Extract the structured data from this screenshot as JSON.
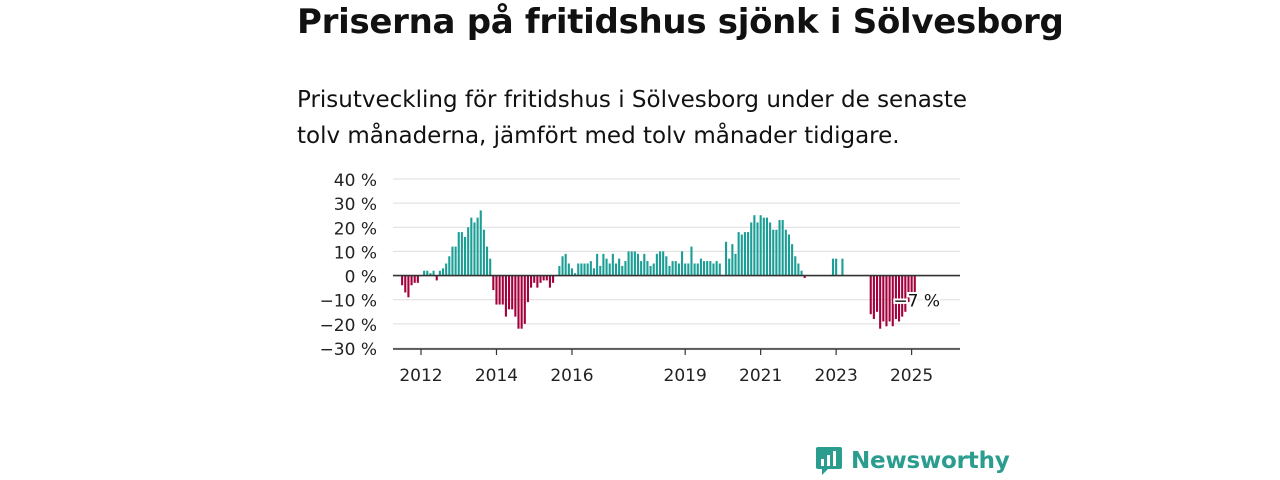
{
  "title": "Priserna på fritidshus sjönk i Sölvesborg",
  "subtitle": "Prisutveckling för fritidshus i Sölvesborg under de senaste tolv månaderna, jämfört med tolv månader tidigare.",
  "brand": {
    "name": "Newsworthy",
    "icon": "newsworthy-logo-icon"
  },
  "colors": {
    "positive": "#1a9e96",
    "negative": "#a3003c",
    "grid": "#dddddd",
    "zero_line": "#333333",
    "brand": "#2a9d8f"
  },
  "chart_data": {
    "type": "bar",
    "title": "",
    "xlabel": "",
    "ylabel": "",
    "ylim": [
      -30,
      40
    ],
    "y_ticks": [
      40,
      30,
      20,
      10,
      0,
      -10,
      -20,
      -30
    ],
    "y_tick_labels": [
      "40 %",
      "30 %",
      "20 %",
      "10 %",
      "0 %",
      "−10 %",
      "−20 %",
      "−30 %"
    ],
    "x_tick_labels": [
      "2012",
      "2014",
      "2016",
      "2019",
      "2021",
      "2023",
      "2025"
    ],
    "x_tick_months": [
      6,
      30,
      54,
      90,
      114,
      138,
      162
    ],
    "grid": true,
    "start": "2011-12",
    "months": 172,
    "series": [
      {
        "values": [
          -4,
          -7,
          -9,
          -4,
          -3,
          -3,
          null,
          2,
          2,
          1,
          2,
          -2,
          2,
          3,
          5,
          8,
          12,
          12,
          18,
          18,
          16,
          20,
          24,
          22,
          24,
          27,
          19,
          12,
          7,
          -6,
          -12,
          -12,
          -12,
          -17,
          -14,
          -14,
          -17,
          -22,
          -22,
          -20,
          -11,
          -5,
          -3,
          -5,
          -3,
          -2,
          -2,
          -5,
          -3,
          null,
          4,
          8,
          9,
          5,
          3,
          1,
          5,
          5,
          5,
          5,
          6,
          3,
          9,
          4,
          9,
          7,
          5,
          9,
          5,
          7,
          4,
          6,
          10,
          10,
          10,
          9,
          6,
          9,
          6,
          4,
          5,
          9,
          10,
          10,
          8,
          4,
          6,
          6,
          5,
          10,
          5,
          5,
          12,
          5,
          5,
          7,
          6,
          6,
          6,
          5,
          6,
          5,
          null,
          14,
          7,
          13,
          9,
          18,
          17,
          18,
          18,
          22,
          25,
          22,
          25,
          24,
          24,
          22,
          19,
          19,
          23,
          23,
          19,
          17,
          13,
          8,
          5,
          2,
          -1,
          null,
          null,
          null,
          null,
          null,
          null,
          null,
          null,
          7,
          7,
          null,
          7,
          null,
          null,
          null,
          null,
          null,
          null,
          null,
          null,
          -16,
          -18,
          -15,
          -22,
          -19,
          -21,
          -19,
          -21,
          -18,
          -19,
          -17,
          -15,
          -11,
          -9,
          -7
        ],
        "end_label": "−7 %"
      }
    ]
  }
}
